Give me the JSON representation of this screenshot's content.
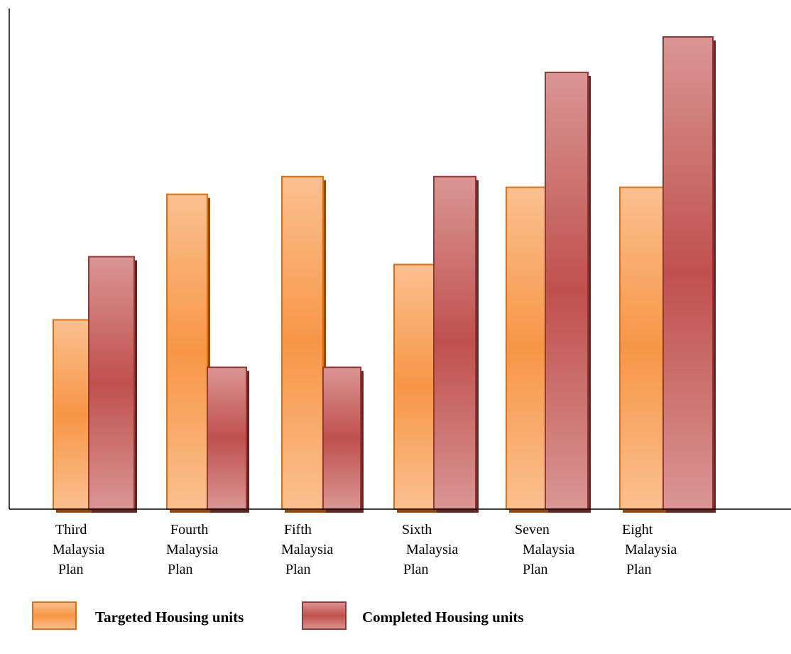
{
  "chart_data": {
    "type": "bar",
    "title": "",
    "xlabel": "",
    "ylabel": "",
    "categories": [
      [
        "Third",
        "Malaysia",
        "Plan"
      ],
      [
        "Fourth",
        "Malaysia",
        "Plan"
      ],
      [
        "Fifth",
        "Malaysia",
        "Plan"
      ],
      [
        "Sixth",
        "Malaysia",
        "Plan"
      ],
      [
        "Seven",
        "Malaysia",
        "Plan"
      ],
      [
        "Eight",
        "Malaysia",
        "Plan"
      ]
    ],
    "series": [
      {
        "name": "Targeted Housing units",
        "color": "#F79646",
        "values": [
          267,
          444,
          469,
          345,
          454,
          454
        ]
      },
      {
        "name": "Completed Housing units",
        "color": "#C0504D",
        "values": [
          356,
          200,
          200,
          469,
          616,
          666
        ]
      }
    ],
    "ylim": [
      0,
      700
    ],
    "grid": false,
    "legend": "bottom-left"
  }
}
